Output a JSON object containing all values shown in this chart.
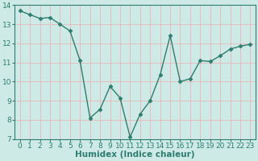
{
  "x": [
    0,
    1,
    2,
    3,
    4,
    5,
    6,
    7,
    8,
    9,
    10,
    11,
    12,
    13,
    14,
    15,
    16,
    17,
    18,
    19,
    20,
    21,
    22,
    23
  ],
  "y": [
    13.7,
    13.5,
    13.3,
    13.35,
    13.0,
    12.65,
    11.1,
    8.1,
    8.55,
    9.75,
    9.15,
    7.1,
    8.3,
    9.0,
    10.35,
    12.4,
    10.0,
    10.15,
    11.1,
    11.05,
    11.35,
    11.7,
    11.85,
    11.95
  ],
  "line_color": "#2e7d6e",
  "marker": "D",
  "marker_size": 2.5,
  "bg_color": "#ceeae6",
  "grid_color": "#e8b8b8",
  "xlabel": "Humidex (Indice chaleur)",
  "ylim": [
    7,
    14
  ],
  "xlim": [
    -0.5,
    23.5
  ],
  "yticks": [
    7,
    8,
    9,
    10,
    11,
    12,
    13,
    14
  ],
  "xticks": [
    0,
    1,
    2,
    3,
    4,
    5,
    6,
    7,
    8,
    9,
    10,
    11,
    12,
    13,
    14,
    15,
    16,
    17,
    18,
    19,
    20,
    21,
    22,
    23
  ],
  "tick_fontsize": 6.5,
  "xlabel_fontsize": 7.5,
  "line_width": 1.0
}
